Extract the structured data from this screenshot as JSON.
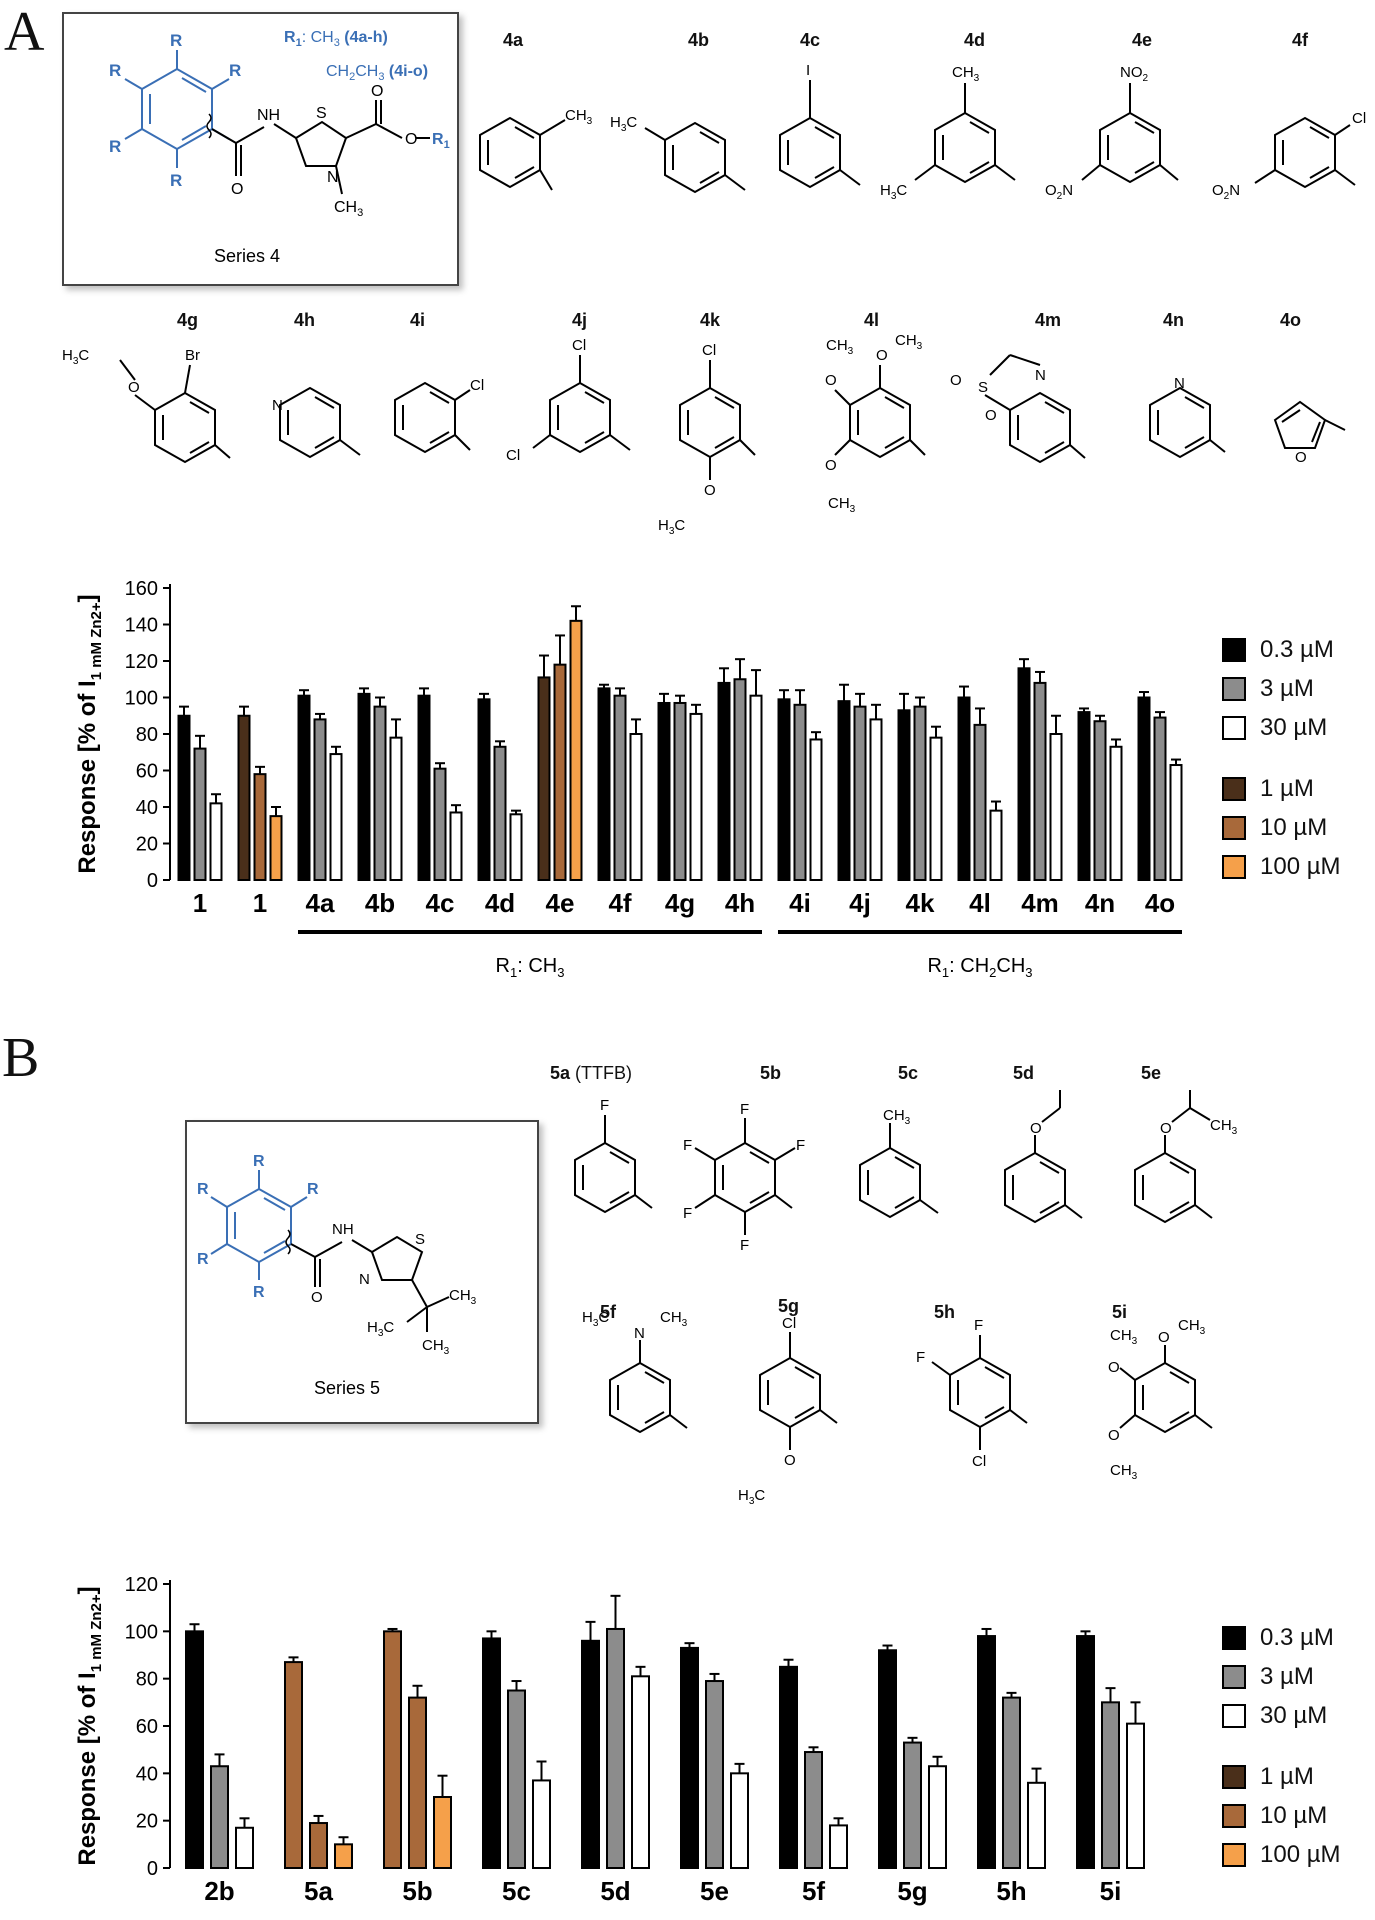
{
  "panel_a": {
    "letter": "A",
    "scaffold": {
      "caption": "Series 4",
      "r_group": "R",
      "r1_line1": "R",
      "r1_line1_sub": "1",
      "r1_line1_rest": ": CH",
      "r1_line1_sub2": "3",
      "r1_line1_tail": " (4a-h)",
      "r1_line2": "CH",
      "r1_line2_sub": "2",
      "r1_line2_mid": "CH",
      "r1_line2_sub2": "3",
      "r1_line2_tail": " (4i-o)",
      "atom_nh": "NH",
      "atom_s": "S",
      "atom_n": "N",
      "atom_o1": "O",
      "atom_o2": "O",
      "atom_o3": "O",
      "atom_r1": "R",
      "atom_r1_sub": "1",
      "atom_ch3": "CH",
      "atom_ch3_sub": "3"
    },
    "compounds": [
      "4a",
      "4b",
      "4c",
      "4d",
      "4e",
      "4f",
      "4g",
      "4h",
      "4i",
      "4j",
      "4k",
      "4l",
      "4m",
      "4n",
      "4o"
    ],
    "substituents": {
      "ch3": "CH",
      "three": "3",
      "h3c": "H",
      "c": "C",
      "i": "I",
      "no2": "NO",
      "two": "2",
      "o2n_o": "O",
      "o2n_n": "N",
      "cl": "Cl",
      "br": "Br",
      "n": "N",
      "o": "O",
      "s": "S"
    },
    "groups": [
      {
        "prefix": "R",
        "sub": "1",
        "mid": ": CH",
        "sub2": "3",
        "tail": ""
      },
      {
        "prefix": "R",
        "sub": "1",
        "mid": ": CH",
        "sub2": "2",
        "tail": "CH",
        "sub3": "3"
      }
    ]
  },
  "panel_b": {
    "letter": "B",
    "scaffold": {
      "caption": "Series 5",
      "r_group": "R",
      "atom_nh": "NH",
      "atom_s": "S",
      "atom_n": "N",
      "atom_o": "O",
      "atom_ch3": "CH",
      "atom_ch3_sub": "3",
      "atom_h3c": "H",
      "atom_h3c_sub": "3",
      "atom_h3c_c": "C"
    },
    "compounds": [
      "5a",
      "5b",
      "5c",
      "5d",
      "5e",
      "5f",
      "5g",
      "5h",
      "5i"
    ],
    "compound_5a_note": "(TTFB)",
    "substituents": {
      "f": "F",
      "ch3": "CH",
      "three": "3",
      "o": "O",
      "cl": "Cl",
      "n": "N",
      "h3c": "H",
      "c": "C"
    }
  },
  "legend": {
    "black_0_3": "0.3 µM",
    "grey_3": "3 µM",
    "white_30": "30 µM",
    "brown_1": "1 µM",
    "brown_10": "10 µM",
    "orange_100": "100 µM"
  },
  "colors": {
    "black": "#000000",
    "grey": "#8c8c8c",
    "white": "#ffffff",
    "dark_brown": "#4a2f1a",
    "brown": "#a8693a",
    "orange": "#f5a04a",
    "scaffold_blue": "#3a6fb5"
  },
  "chart_data": [
    {
      "type": "bar",
      "panel": "A",
      "title": "",
      "xlabel": "",
      "ylabel": "Response [% of I",
      "ylabel_sub": "1 mM Zn2+",
      "ylabel_tail": "]",
      "ylim": [
        0,
        160
      ],
      "yticks": [
        0,
        20,
        40,
        60,
        80,
        100,
        120,
        140,
        160
      ],
      "categories": [
        "1",
        "1",
        "4a",
        "4b",
        "4c",
        "4d",
        "4e",
        "4f",
        "4g",
        "4h",
        "4i",
        "4j",
        "4k",
        "4l",
        "4m",
        "4n",
        "4o"
      ],
      "color_sets": [
        [
          "black",
          "grey",
          "white"
        ],
        [
          "dark_brown",
          "brown",
          "orange"
        ],
        [
          "black",
          "grey",
          "white"
        ],
        [
          "black",
          "grey",
          "white"
        ],
        [
          "black",
          "grey",
          "white"
        ],
        [
          "black",
          "grey",
          "white"
        ],
        [
          "dark_brown",
          "brown",
          "orange"
        ],
        [
          "black",
          "grey",
          "white"
        ],
        [
          "black",
          "grey",
          "white"
        ],
        [
          "black",
          "grey",
          "white"
        ],
        [
          "black",
          "grey",
          "white"
        ],
        [
          "black",
          "grey",
          "white"
        ],
        [
          "black",
          "grey",
          "white"
        ],
        [
          "black",
          "grey",
          "white"
        ],
        [
          "black",
          "grey",
          "white"
        ],
        [
          "black",
          "grey",
          "white"
        ],
        [
          "black",
          "grey",
          "white"
        ]
      ],
      "values": [
        [
          90,
          72,
          42
        ],
        [
          90,
          58,
          35
        ],
        [
          101,
          88,
          69
        ],
        [
          102,
          95,
          78
        ],
        [
          101,
          61,
          37
        ],
        [
          99,
          73,
          36
        ],
        [
          111,
          118,
          142
        ],
        [
          105,
          101,
          80
        ],
        [
          97,
          97,
          91
        ],
        [
          108,
          110,
          101
        ],
        [
          99,
          96,
          77
        ],
        [
          98,
          95,
          88
        ],
        [
          93,
          95,
          78
        ],
        [
          100,
          85,
          38
        ],
        [
          116,
          108,
          80
        ],
        [
          92,
          87,
          73
        ],
        [
          100,
          89,
          63
        ]
      ],
      "errors": [
        [
          5,
          7,
          5
        ],
        [
          5,
          4,
          5
        ],
        [
          3,
          3,
          4
        ],
        [
          3,
          5,
          10
        ],
        [
          4,
          3,
          4
        ],
        [
          3,
          3,
          2
        ],
        [
          12,
          16,
          8
        ],
        [
          2,
          4,
          8
        ],
        [
          5,
          4,
          5
        ],
        [
          8,
          11,
          14
        ],
        [
          5,
          8,
          4
        ],
        [
          9,
          7,
          8
        ],
        [
          9,
          5,
          6
        ],
        [
          6,
          9,
          5
        ],
        [
          5,
          6,
          10
        ],
        [
          2,
          3,
          4
        ],
        [
          3,
          3,
          3
        ]
      ]
    },
    {
      "type": "bar",
      "panel": "B",
      "title": "",
      "xlabel": "",
      "ylabel": "Response [% of I",
      "ylabel_sub": "1 mM Zn2+",
      "ylabel_tail": "]",
      "ylim": [
        0,
        120
      ],
      "yticks": [
        0,
        20,
        40,
        60,
        80,
        100,
        120
      ],
      "categories": [
        "2b",
        "5a",
        "5b",
        "5c",
        "5d",
        "5e",
        "5f",
        "5g",
        "5h",
        "5i"
      ],
      "color_sets": [
        [
          "black",
          "grey",
          "white"
        ],
        [
          "brown",
          "brown",
          "orange"
        ],
        [
          "brown",
          "brown",
          "orange"
        ],
        [
          "black",
          "grey",
          "white"
        ],
        [
          "black",
          "grey",
          "white"
        ],
        [
          "black",
          "grey",
          "white"
        ],
        [
          "black",
          "grey",
          "white"
        ],
        [
          "black",
          "grey",
          "white"
        ],
        [
          "black",
          "grey",
          "white"
        ],
        [
          "black",
          "grey",
          "white"
        ]
      ],
      "values": [
        [
          100,
          43,
          17
        ],
        [
          87,
          19,
          10
        ],
        [
          100,
          72,
          30
        ],
        [
          97,
          75,
          37
        ],
        [
          96,
          101,
          81
        ],
        [
          93,
          79,
          40
        ],
        [
          85,
          49,
          18
        ],
        [
          92,
          53,
          43
        ],
        [
          98,
          72,
          36
        ],
        [
          98,
          70,
          61
        ]
      ],
      "errors": [
        [
          3,
          5,
          4
        ],
        [
          2,
          3,
          3
        ],
        [
          1,
          5,
          9
        ],
        [
          3,
          4,
          8
        ],
        [
          8,
          14,
          4
        ],
        [
          2,
          3,
          4
        ],
        [
          3,
          2,
          3
        ],
        [
          2,
          2,
          4
        ],
        [
          3,
          2,
          6
        ],
        [
          2,
          6,
          9
        ]
      ]
    }
  ]
}
